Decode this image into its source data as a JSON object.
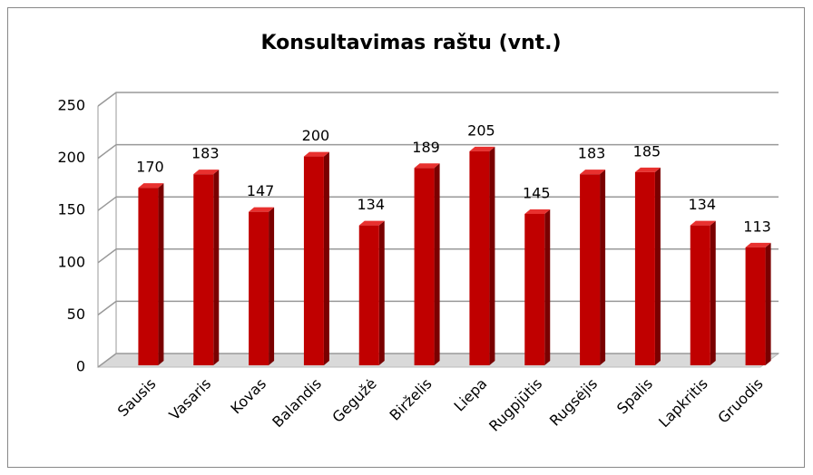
{
  "chart_data": {
    "type": "bar",
    "title": "Konsultavimas raštu (vnt.)",
    "categories": [
      "Sausis",
      "Vasaris",
      "Kovas",
      "Balandis",
      "Gegužė",
      "Birželis",
      "Liepa",
      "Rugpjūtis",
      "Rugsėjis",
      "Spalis",
      "Lapkritis",
      "Gruodis"
    ],
    "values": [
      170,
      183,
      147,
      200,
      134,
      189,
      205,
      145,
      183,
      185,
      134,
      113
    ],
    "color": "#c00000",
    "ylim": [
      0,
      250
    ],
    "yticks": [
      0,
      50,
      100,
      150,
      200,
      250
    ],
    "grid": true
  }
}
